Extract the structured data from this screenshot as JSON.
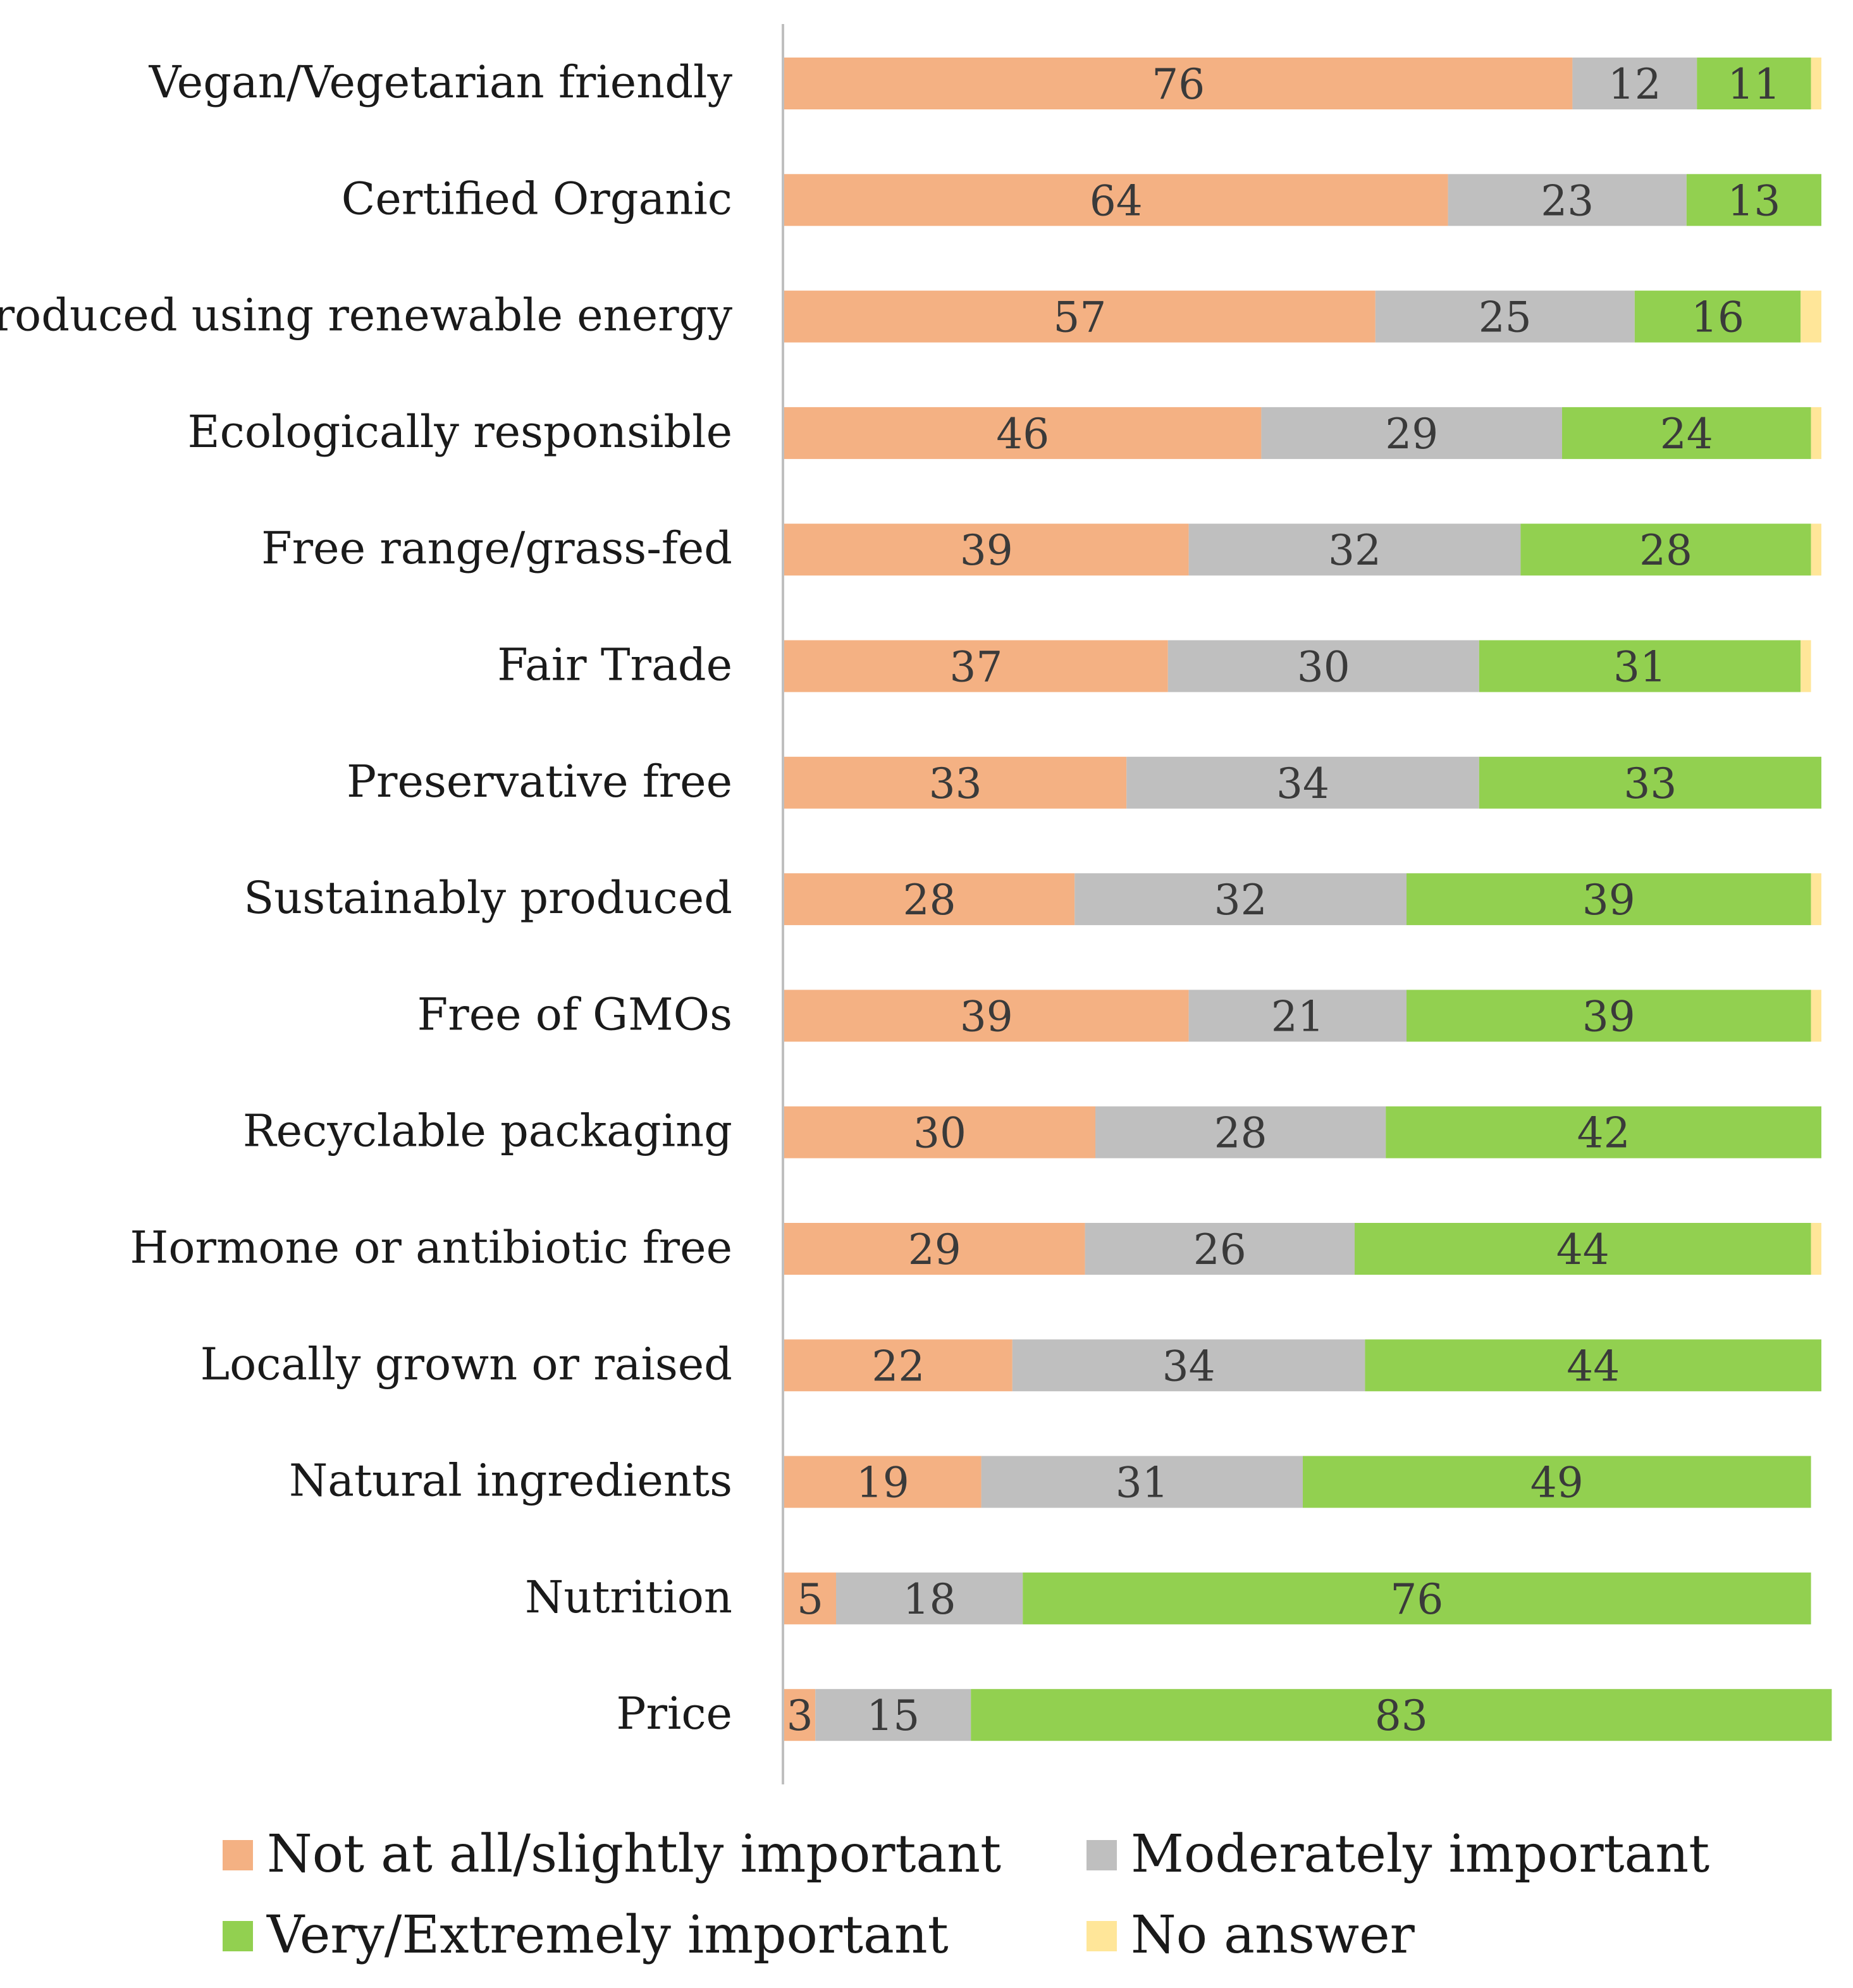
{
  "chart_data": {
    "type": "bar",
    "orientation": "horizontal",
    "stacked": true,
    "title": "",
    "xlabel": "",
    "ylabel": "",
    "xlim": [
      0,
      100
    ],
    "grid": false,
    "legend_position": "bottom",
    "categories": [
      "Vegan/Vegetarian friendly",
      "Certified Organic",
      "Produced using renewable energy",
      "Ecologically responsible",
      "Free range/grass-fed",
      "Fair Trade",
      "Preservative free",
      "Sustainably produced",
      "Free of GMOs",
      "Recyclable packaging",
      "Hormone or antibiotic free",
      "Locally grown or raised",
      "Natural ingredients",
      "Nutrition",
      "Price"
    ],
    "series": [
      {
        "name": "Not at all/slightly important",
        "color": "#f4b183",
        "values": [
          76,
          64,
          57,
          46,
          39,
          37,
          33,
          28,
          39,
          30,
          29,
          22,
          19,
          5,
          3
        ]
      },
      {
        "name": "Moderately important",
        "color": "#bfbfbf",
        "values": [
          12,
          23,
          25,
          29,
          32,
          30,
          34,
          32,
          21,
          28,
          26,
          34,
          31,
          18,
          15
        ]
      },
      {
        "name": "Very/Extremely important",
        "color": "#92d050",
        "values": [
          11,
          13,
          16,
          24,
          28,
          31,
          33,
          39,
          39,
          42,
          44,
          44,
          49,
          76,
          83
        ]
      },
      {
        "name": "No answer",
        "color": "#ffe699",
        "values": [
          1,
          0,
          2,
          1,
          1,
          1,
          0,
          1,
          1,
          0,
          1,
          0,
          0,
          0,
          0
        ]
      }
    ]
  }
}
